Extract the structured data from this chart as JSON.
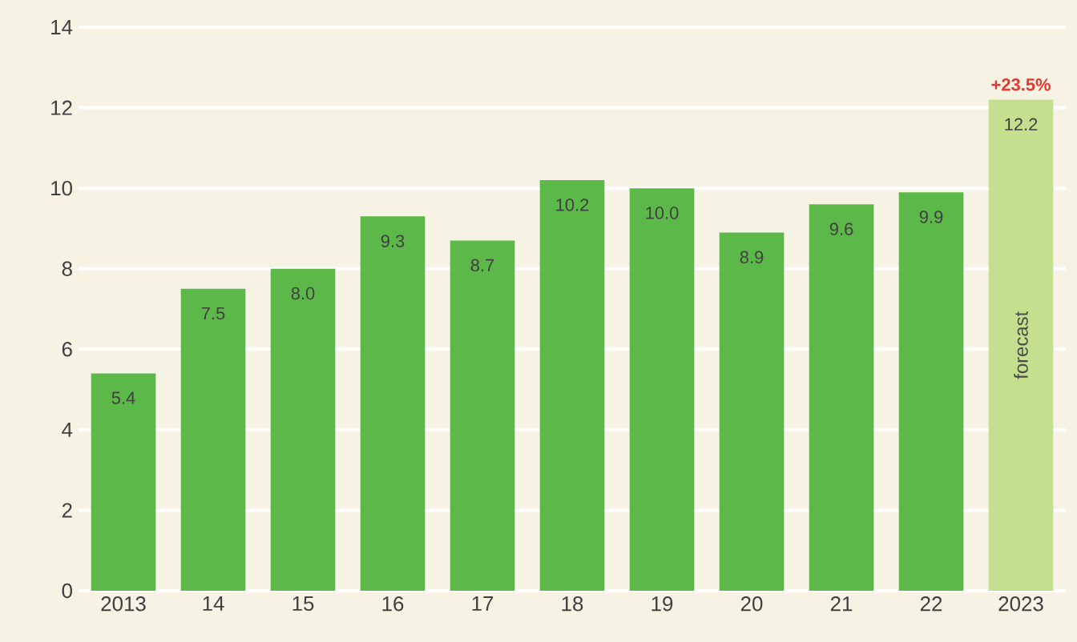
{
  "chart_data": {
    "type": "bar",
    "categories": [
      "2013",
      "14",
      "15",
      "16",
      "17",
      "18",
      "19",
      "20",
      "21",
      "22",
      "2023"
    ],
    "values": [
      5.4,
      7.5,
      8.0,
      9.3,
      8.7,
      10.2,
      10.0,
      8.9,
      9.6,
      9.9,
      12.2
    ],
    "value_labels": [
      "5.4",
      "7.5",
      "8.0",
      "9.3",
      "8.7",
      "10.2",
      "10.0",
      "8.9",
      "9.6",
      "9.9",
      "12.2"
    ],
    "colors": [
      "#5cb848",
      "#5cb848",
      "#5cb848",
      "#5cb848",
      "#5cb848",
      "#5cb848",
      "#5cb848",
      "#5cb848",
      "#5cb848",
      "#5cb848",
      "#c4df8e"
    ],
    "ylim": [
      0,
      14
    ],
    "yticks": [
      0,
      2,
      4,
      6,
      8,
      10,
      12,
      14
    ],
    "grid": "y",
    "annotations": [
      {
        "text": "+23.5%",
        "x": "2023",
        "y": 12.2
      },
      "forecast"
    ]
  }
}
